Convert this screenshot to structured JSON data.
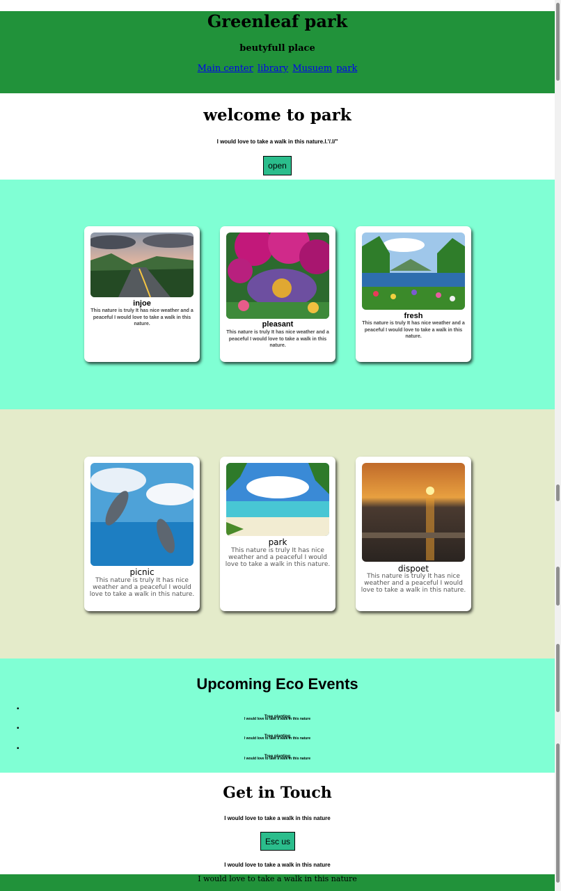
{
  "header": {
    "title": "Greenleaf park",
    "subtitle": "beutyfull place",
    "nav": [
      "Main center",
      "library",
      "Musuem",
      "park"
    ]
  },
  "welcome": {
    "title": "welcome to park",
    "tagline": "I would love to take a walk in this nature.l.'/.l/\"",
    "button": "open"
  },
  "cards_row1": [
    {
      "name": "injoe",
      "desc": "This nature is truly It has nice weather and a peaceful I would love to take a walk in this nature."
    },
    {
      "name": "pleasant",
      "desc": "This nature is truly It has nice weather and a peaceful I would love to take a walk in this nature."
    },
    {
      "name": "fresh",
      "desc": "This nature is truly It has nice weather and a peaceful I would love to take a walk in this nature."
    }
  ],
  "cards_row2": [
    {
      "name": "picnic",
      "desc": "This nature is truly It has nice weather and a peaceful I would love to take a walk in this nature."
    },
    {
      "name": "park",
      "desc": "This nature is truly It has nice weather and a peaceful I would love to take a walk in this nature."
    },
    {
      "name": "dispoet",
      "desc": "This nature is truly It has nice weather and a peaceful I would love to take a walk in this nature."
    }
  ],
  "events": {
    "title": "Upcoming Eco Events",
    "items": [
      {
        "title": "Tree planting",
        "desc": "I would love to take a walk in this nature"
      },
      {
        "title": "Tree planting",
        "desc": "I would love to take a walk in this nature"
      },
      {
        "title": "Tree planting",
        "desc": "I would love to take a walk in this nature"
      }
    ]
  },
  "contact": {
    "title": "Get in Touch",
    "line1": "I would love to take a walk in this nature",
    "button": "Esc us",
    "line2": "I would love to take a walk in this nature"
  },
  "footer": {
    "text": "I would love to take a walk in this nature"
  },
  "colors": {
    "header": "#21923a",
    "aqua": "#80ffd4",
    "beige": "#e4ebca",
    "button": "#2bbd8c",
    "link": "#0000ee"
  }
}
